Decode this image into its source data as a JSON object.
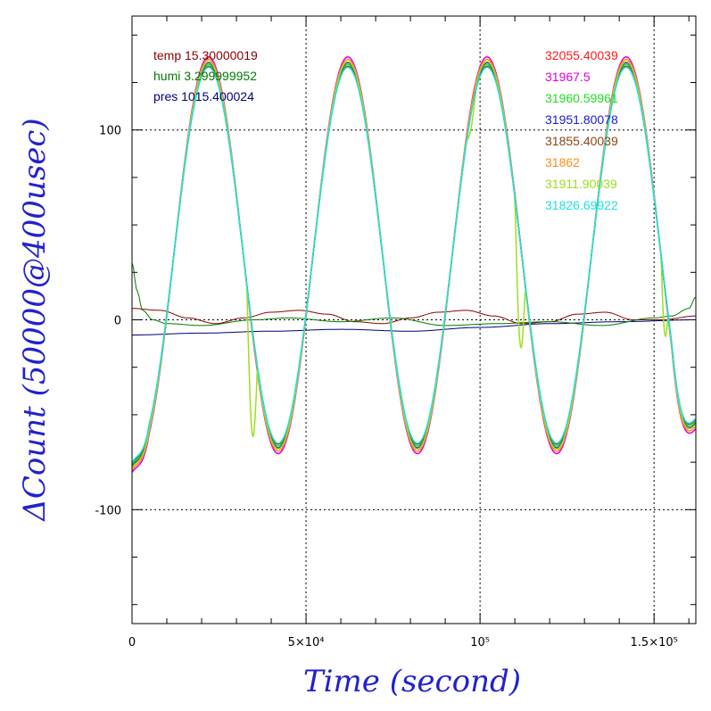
{
  "chart_data": {
    "type": "line",
    "xlabel": "Time (second)",
    "ylabel": "ΔCount (50000@400usec)",
    "xlim": [
      0,
      162000
    ],
    "ylim": [
      -160,
      160
    ],
    "grid": true,
    "legend_placement": "top (two columns)",
    "x_ticks": [
      {
        "value": 0,
        "label": "0"
      },
      {
        "value": 50000,
        "label": "5×10⁴"
      },
      {
        "value": 100000,
        "label": "10⁵"
      },
      {
        "value": 150000,
        "label": "1.5×10⁵"
      }
    ],
    "y_ticks": [
      {
        "value": -100,
        "label": "-100"
      },
      {
        "value": 0,
        "label": "0"
      },
      {
        "value": 100,
        "label": "100"
      }
    ],
    "env_legend": [
      {
        "text": "temp 15.30000019",
        "color": "#8b0000"
      },
      {
        "text": "humi 3.299999952",
        "color": "#007a00"
      },
      {
        "text": "pres 1015.400024",
        "color": "#00007a"
      }
    ],
    "series": [
      {
        "name": "32055.40039",
        "color": "#ff1a1a",
        "offset": 0
      },
      {
        "name": "31967.5",
        "color": "#e000e0",
        "offset": 2.5
      },
      {
        "name": "31960.59961",
        "color": "#1ee01e",
        "offset": -1.5
      },
      {
        "name": "31951.80078",
        "color": "#1a1ad6",
        "offset": -0.5
      },
      {
        "name": "31855.40039",
        "color": "#8b4513",
        "offset": -2.5
      },
      {
        "name": "31862",
        "color": "#ff8c1a",
        "offset": 1.2
      },
      {
        "name": "31911.90039",
        "color": "#9be01e",
        "offset": 0,
        "dropouts": true
      },
      {
        "name": "31826.69922",
        "color": "#1ee0e0",
        "offset": -3
      }
    ],
    "main_curve": {
      "period_s": 40000,
      "amplitude": 102,
      "center": 34,
      "peaks_s": [
        22000,
        62000,
        101000,
        141000
      ],
      "troughs_s": [
        42000,
        81000,
        121000
      ],
      "start_value": -78,
      "end_value": -55
    },
    "temp_curve": {
      "x": [
        0,
        8000,
        16000,
        24000,
        32000,
        40000,
        48000,
        56000,
        64000,
        72000,
        80000,
        88000,
        96000,
        104000,
        112000,
        120000,
        128000,
        136000,
        144000,
        152000,
        162000
      ],
      "y": [
        6,
        5,
        1,
        -2,
        1,
        4,
        5,
        3,
        -1,
        -2,
        1,
        4,
        5,
        2,
        -2,
        -1,
        3,
        4,
        0,
        0,
        2
      ]
    },
    "humi_curve": {
      "x": [
        0,
        1500,
        3000,
        6000,
        10000,
        20000,
        35000,
        45000,
        60000,
        75000,
        90000,
        105000,
        120000,
        135000,
        150000,
        155000,
        160000,
        162000
      ],
      "y": [
        30,
        15,
        5,
        0,
        -2,
        -3,
        0,
        1,
        -1,
        1,
        -3,
        -2,
        -1,
        -3,
        1,
        2,
        6,
        12
      ]
    },
    "pres_curve": {
      "x": [
        0,
        20000,
        40000,
        60000,
        80000,
        100000,
        120000,
        140000,
        162000
      ],
      "y": [
        -8,
        -7,
        -6,
        -5,
        -6,
        -4,
        -2,
        -1,
        0
      ]
    }
  }
}
